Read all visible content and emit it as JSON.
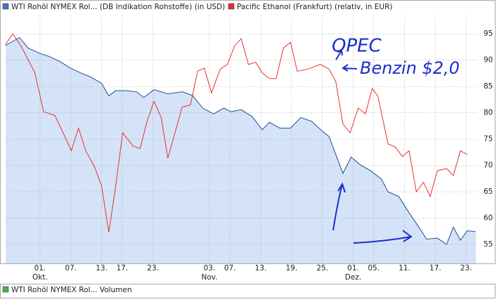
{
  "chart_data": {
    "type": "line",
    "legend": [
      "WTI Rohöl NYMEX Rol... (DB Indikation Rohstoffe) (in USD)",
      "Pacific Ethanol (Frankfurt) (relativ, in EUR)"
    ],
    "volume_legend": "WTI Rohöl NYMEX Rol... Volumen",
    "annotations": [
      "OPEC",
      "Benzin $2,0"
    ],
    "months": [
      {
        "value": 1,
        "label": "Okt."
      },
      {
        "value": 34,
        "label": "Nov."
      },
      {
        "value": 62,
        "label": "Dez."
      }
    ],
    "xlim": [
      -5.7,
      86.3
    ],
    "xticks": [
      {
        "value": 1,
        "label": "01."
      },
      {
        "value": 7,
        "label": "07."
      },
      {
        "value": 13,
        "label": "13."
      },
      {
        "value": 17,
        "label": "17."
      },
      {
        "value": 23,
        "label": "23."
      },
      {
        "value": 34,
        "label": "03."
      },
      {
        "value": 38,
        "label": "07."
      },
      {
        "value": 44,
        "label": "13."
      },
      {
        "value": 50,
        "label": "19."
      },
      {
        "value": 56,
        "label": "25."
      },
      {
        "value": 62,
        "label": "01."
      },
      {
        "value": 66,
        "label": "05."
      },
      {
        "value": 72,
        "label": "11."
      },
      {
        "value": 78,
        "label": "17."
      },
      {
        "value": 84,
        "label": "23."
      }
    ],
    "ylim": [
      51.4,
      98.5
    ],
    "yticks": [
      55,
      60,
      65,
      70,
      75,
      80,
      85,
      90,
      95
    ],
    "grid": true,
    "series": [
      {
        "name": "WTI Rohöl NYMEX Rol...",
        "color": "#1f4f8a",
        "area": "#d5e3f8",
        "x": [
          -5.7,
          -3.0,
          -1.3,
          0.7,
          2.8,
          4.8,
          6.9,
          8.9,
          10.9,
          13.0,
          14.4,
          15.7,
          17.8,
          19.8,
          21.2,
          23.2,
          25.9,
          28.7,
          30.7,
          32.7,
          34.8,
          36.8,
          38.2,
          40.2,
          42.3,
          44.3,
          45.7,
          47.7,
          49.8,
          51.8,
          53.9,
          55.9,
          57.3,
          58.6,
          60.0,
          61.6,
          63.4,
          65.4,
          67.5,
          68.8,
          70.9,
          72.9,
          75.0,
          76.3,
          78.4,
          80.2,
          81.5,
          82.9,
          84.2,
          85.9
        ],
        "values": [
          92.8,
          94.3,
          92.3,
          91.4,
          90.7,
          89.8,
          88.5,
          87.6,
          86.8,
          85.6,
          83.2,
          84.2,
          84.2,
          84.0,
          82.9,
          84.4,
          83.6,
          84.0,
          83.3,
          80.9,
          79.8,
          80.9,
          80.2,
          80.6,
          79.3,
          76.8,
          78.2,
          77.1,
          77.1,
          79.1,
          78.4,
          76.6,
          75.5,
          72.1,
          68.5,
          71.6,
          70.1,
          69.0,
          67.4,
          65.0,
          64.1,
          61.0,
          58.0,
          56.0,
          56.2,
          55.0,
          58.3,
          55.8,
          57.6,
          57.4
        ]
      },
      {
        "name": "Pacific Ethanol (Frankfurt)",
        "color": "#e83030",
        "x": [
          -5.7,
          -4.3,
          -2.7,
          0.0,
          1.7,
          3.9,
          5.5,
          7.1,
          8.5,
          9.9,
          11.6,
          13.0,
          14.4,
          15.7,
          17.1,
          19.1,
          20.5,
          21.8,
          23.2,
          24.6,
          25.9,
          28.7,
          30.3,
          31.7,
          33.0,
          34.4,
          36.1,
          37.5,
          38.9,
          40.2,
          41.6,
          43.0,
          44.3,
          45.7,
          47.0,
          48.4,
          49.8,
          51.1,
          53.2,
          55.6,
          57.3,
          58.6,
          60.0,
          61.4,
          63.0,
          64.4,
          65.7,
          66.8,
          68.8,
          70.2,
          71.6,
          72.9,
          74.3,
          75.7,
          77.0,
          78.4,
          80.2,
          81.5,
          82.9,
          84.2
        ],
        "values": [
          93.0,
          95.0,
          92.7,
          87.6,
          80.2,
          79.5,
          76.2,
          72.8,
          77.1,
          72.8,
          69.8,
          66.1,
          57.3,
          65.8,
          76.2,
          73.7,
          73.2,
          78.2,
          82.2,
          79.1,
          71.4,
          81.1,
          81.5,
          87.9,
          88.5,
          83.8,
          88.3,
          89.2,
          92.7,
          94.1,
          89.2,
          89.6,
          87.6,
          86.5,
          86.5,
          92.3,
          93.4,
          87.9,
          88.3,
          89.2,
          88.3,
          86.0,
          77.9,
          76.2,
          80.9,
          79.8,
          84.6,
          83.2,
          74.1,
          73.5,
          71.7,
          72.8,
          65.0,
          66.8,
          64.1,
          69.0,
          69.4,
          68.1,
          72.8,
          72.1
        ]
      }
    ]
  }
}
